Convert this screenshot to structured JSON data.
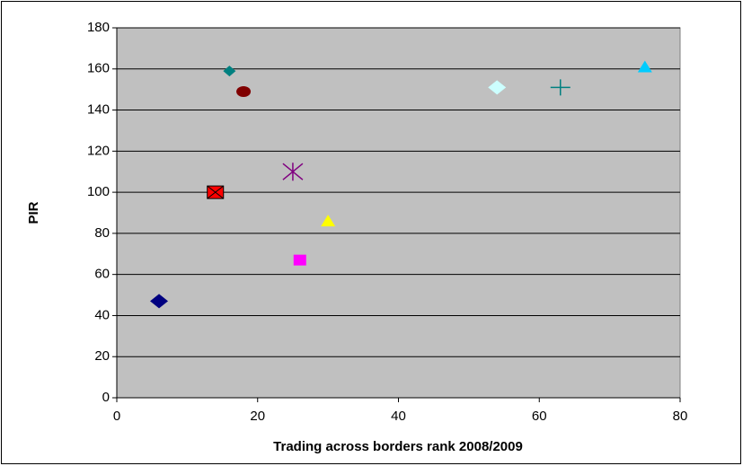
{
  "chart_data": {
    "type": "scatter",
    "x_label": "Trading across borders rank 2008/2009",
    "y_label": "PIR",
    "xlim": [
      0,
      80
    ],
    "xticks": [
      0,
      20,
      40,
      60,
      80
    ],
    "ylim": [
      0,
      180
    ],
    "yticks": [
      0,
      20,
      40,
      60,
      80,
      100,
      120,
      140,
      160,
      180
    ],
    "grid": true,
    "plot_background": "#c0c0c0",
    "series": [
      {
        "color": "#000080",
        "marker": "diamond",
        "x": [
          6
        ],
        "values": [
          47
        ]
      },
      {
        "color": "#ff0000",
        "marker": "square-x",
        "x": [
          14
        ],
        "values": [
          100
        ]
      },
      {
        "color": "#008080",
        "marker": "small-diamond",
        "x": [
          16
        ],
        "values": [
          159
        ]
      },
      {
        "color": "#800000",
        "marker": "ellipse",
        "x": [
          18
        ],
        "values": [
          149
        ]
      },
      {
        "color": "#800080",
        "marker": "asterisk",
        "x": [
          25
        ],
        "values": [
          110
        ]
      },
      {
        "color": "#ff00ff",
        "marker": "square",
        "x": [
          26
        ],
        "values": [
          67
        ]
      },
      {
        "color": "#ffff00",
        "marker": "triangle",
        "x": [
          30
        ],
        "values": [
          86
        ]
      },
      {
        "color": "#ccffff",
        "marker": "diamond",
        "x": [
          54
        ],
        "values": [
          151
        ]
      },
      {
        "color": "#008080",
        "marker": "plus",
        "x": [
          63
        ],
        "values": [
          151
        ]
      },
      {
        "color": "#00ccff",
        "marker": "triangle",
        "x": [
          75
        ],
        "values": [
          161
        ]
      }
    ]
  }
}
